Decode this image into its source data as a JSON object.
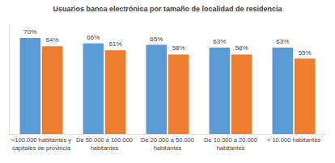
{
  "chart_data": {
    "type": "bar",
    "title": "Usuarios banca electrónica por tamaño de localidad de residencia",
    "categories": [
      ">100.000 habitantes y capitales de provincia",
      "De 50.000 a 100.000 habitantes",
      "De 20.000 a 50.000 habitantes",
      "De 10.000 a 20.000 habitantes",
      "< 10.000 habitantes"
    ],
    "series": [
      {
        "color": "#5B9BD5",
        "values": [
          70,
          66,
          65,
          63,
          63
        ],
        "value_labels": [
          "70%",
          "66%",
          "65%",
          "63%",
          "63%"
        ]
      },
      {
        "color": "#ED7D31",
        "values": [
          64,
          61,
          58,
          58,
          55
        ],
        "value_labels": [
          "64%",
          "61%",
          "58%",
          "58%",
          "55%"
        ]
      }
    ],
    "ylim": [
      0,
      80
    ],
    "grid": false,
    "data_labels": true,
    "tick_labels": "x"
  }
}
